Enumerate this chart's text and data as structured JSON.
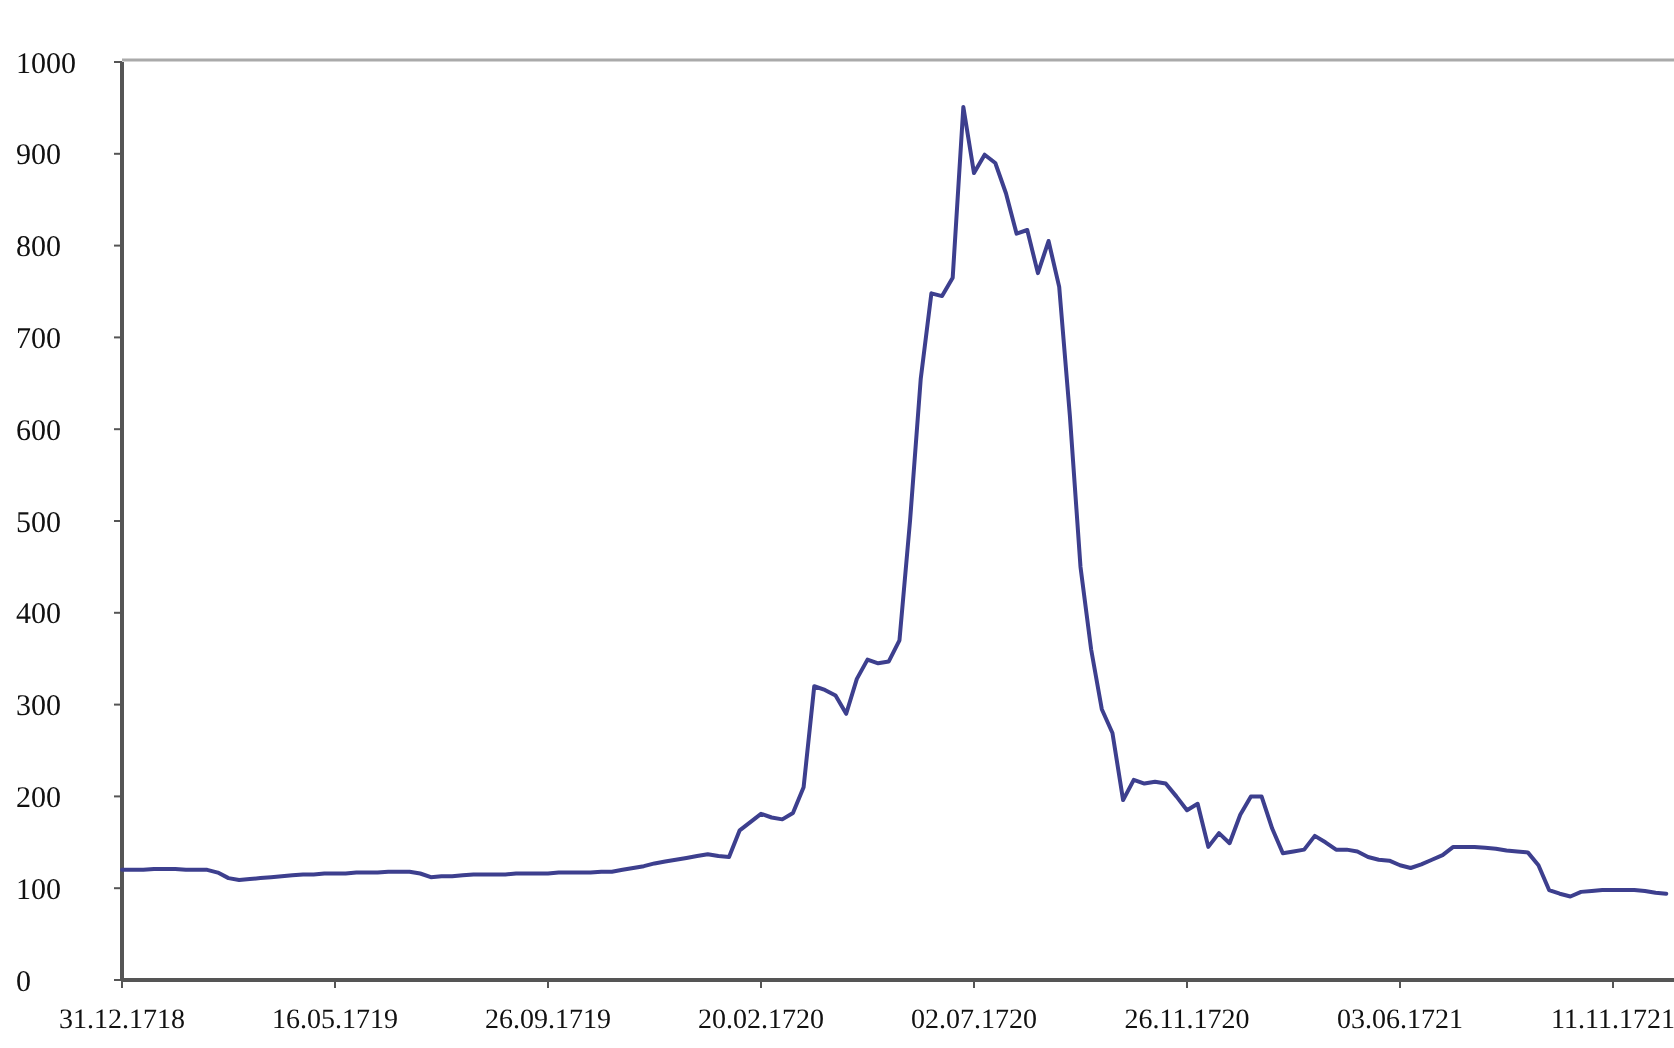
{
  "chart_data": {
    "type": "line",
    "categories": [
      "31.12.1718",
      null,
      null,
      null,
      null,
      null,
      null,
      null,
      null,
      null,
      null,
      null,
      null,
      null,
      null,
      null,
      null,
      null,
      null,
      null,
      "16.05.1719",
      null,
      null,
      null,
      null,
      null,
      null,
      null,
      null,
      null,
      null,
      null,
      null,
      null,
      null,
      null,
      null,
      null,
      null,
      null,
      "26.09.1719",
      null,
      null,
      null,
      null,
      null,
      null,
      null,
      null,
      null,
      null,
      null,
      null,
      null,
      null,
      null,
      null,
      null,
      null,
      null,
      "20.02.1720",
      null,
      null,
      null,
      null,
      null,
      null,
      null,
      null,
      null,
      null,
      null,
      null,
      null,
      null,
      null,
      null,
      null,
      null,
      null,
      "02.07.1720",
      null,
      null,
      null,
      null,
      null,
      null,
      null,
      null,
      null,
      null,
      null,
      null,
      null,
      null,
      null,
      null,
      null,
      null,
      null,
      "26.11.1720",
      null,
      null,
      null,
      null,
      null,
      null,
      null,
      null,
      null,
      null,
      null,
      null,
      null,
      null,
      null,
      null,
      null,
      null,
      null,
      "03.06.1721",
      null,
      null,
      null,
      null,
      null,
      null,
      null,
      null,
      null,
      null,
      null,
      null,
      null,
      null,
      null,
      null,
      null,
      null,
      null,
      "11.11.1721",
      null,
      null,
      null,
      null,
      null
    ],
    "series": [
      {
        "color": "#3d3f8e",
        "values": [
          120,
          120,
          120,
          121,
          121,
          121,
          120,
          120,
          120,
          117,
          111,
          109,
          110,
          111,
          112,
          113,
          114,
          115,
          115,
          116,
          116,
          116,
          117,
          117,
          117,
          118,
          118,
          118,
          116,
          112,
          113,
          113,
          114,
          115,
          115,
          115,
          115,
          116,
          116,
          116,
          116,
          117,
          117,
          117,
          117,
          118,
          118,
          120,
          122,
          124,
          127,
          129,
          131,
          133,
          135,
          137,
          135,
          134,
          163,
          172,
          181,
          177,
          175,
          182,
          210,
          320,
          316,
          310,
          290,
          328,
          349,
          345,
          347,
          370,
          501,
          655,
          748,
          745,
          765,
          951,
          879,
          899,
          890,
          857,
          813,
          817,
          770,
          805,
          755,
          615,
          450,
          360,
          295,
          269,
          196,
          218,
          214,
          216,
          214,
          200,
          185,
          192,
          145,
          160,
          149,
          180,
          200,
          200,
          165,
          138,
          140,
          142,
          157,
          150,
          142,
          142,
          140,
          134,
          131,
          130,
          125,
          122,
          126,
          131,
          136,
          145,
          145,
          145,
          144,
          143,
          141,
          140,
          139,
          125,
          98,
          94,
          91,
          96,
          97,
          98,
          98,
          98,
          98,
          97,
          95,
          94
        ]
      }
    ],
    "ylim": [
      0,
      1000
    ],
    "yticks": [
      0,
      100,
      200,
      300,
      400,
      500,
      600,
      700,
      800,
      900,
      1000
    ],
    "grid": false,
    "marker": "none",
    "line_style": "solid"
  }
}
